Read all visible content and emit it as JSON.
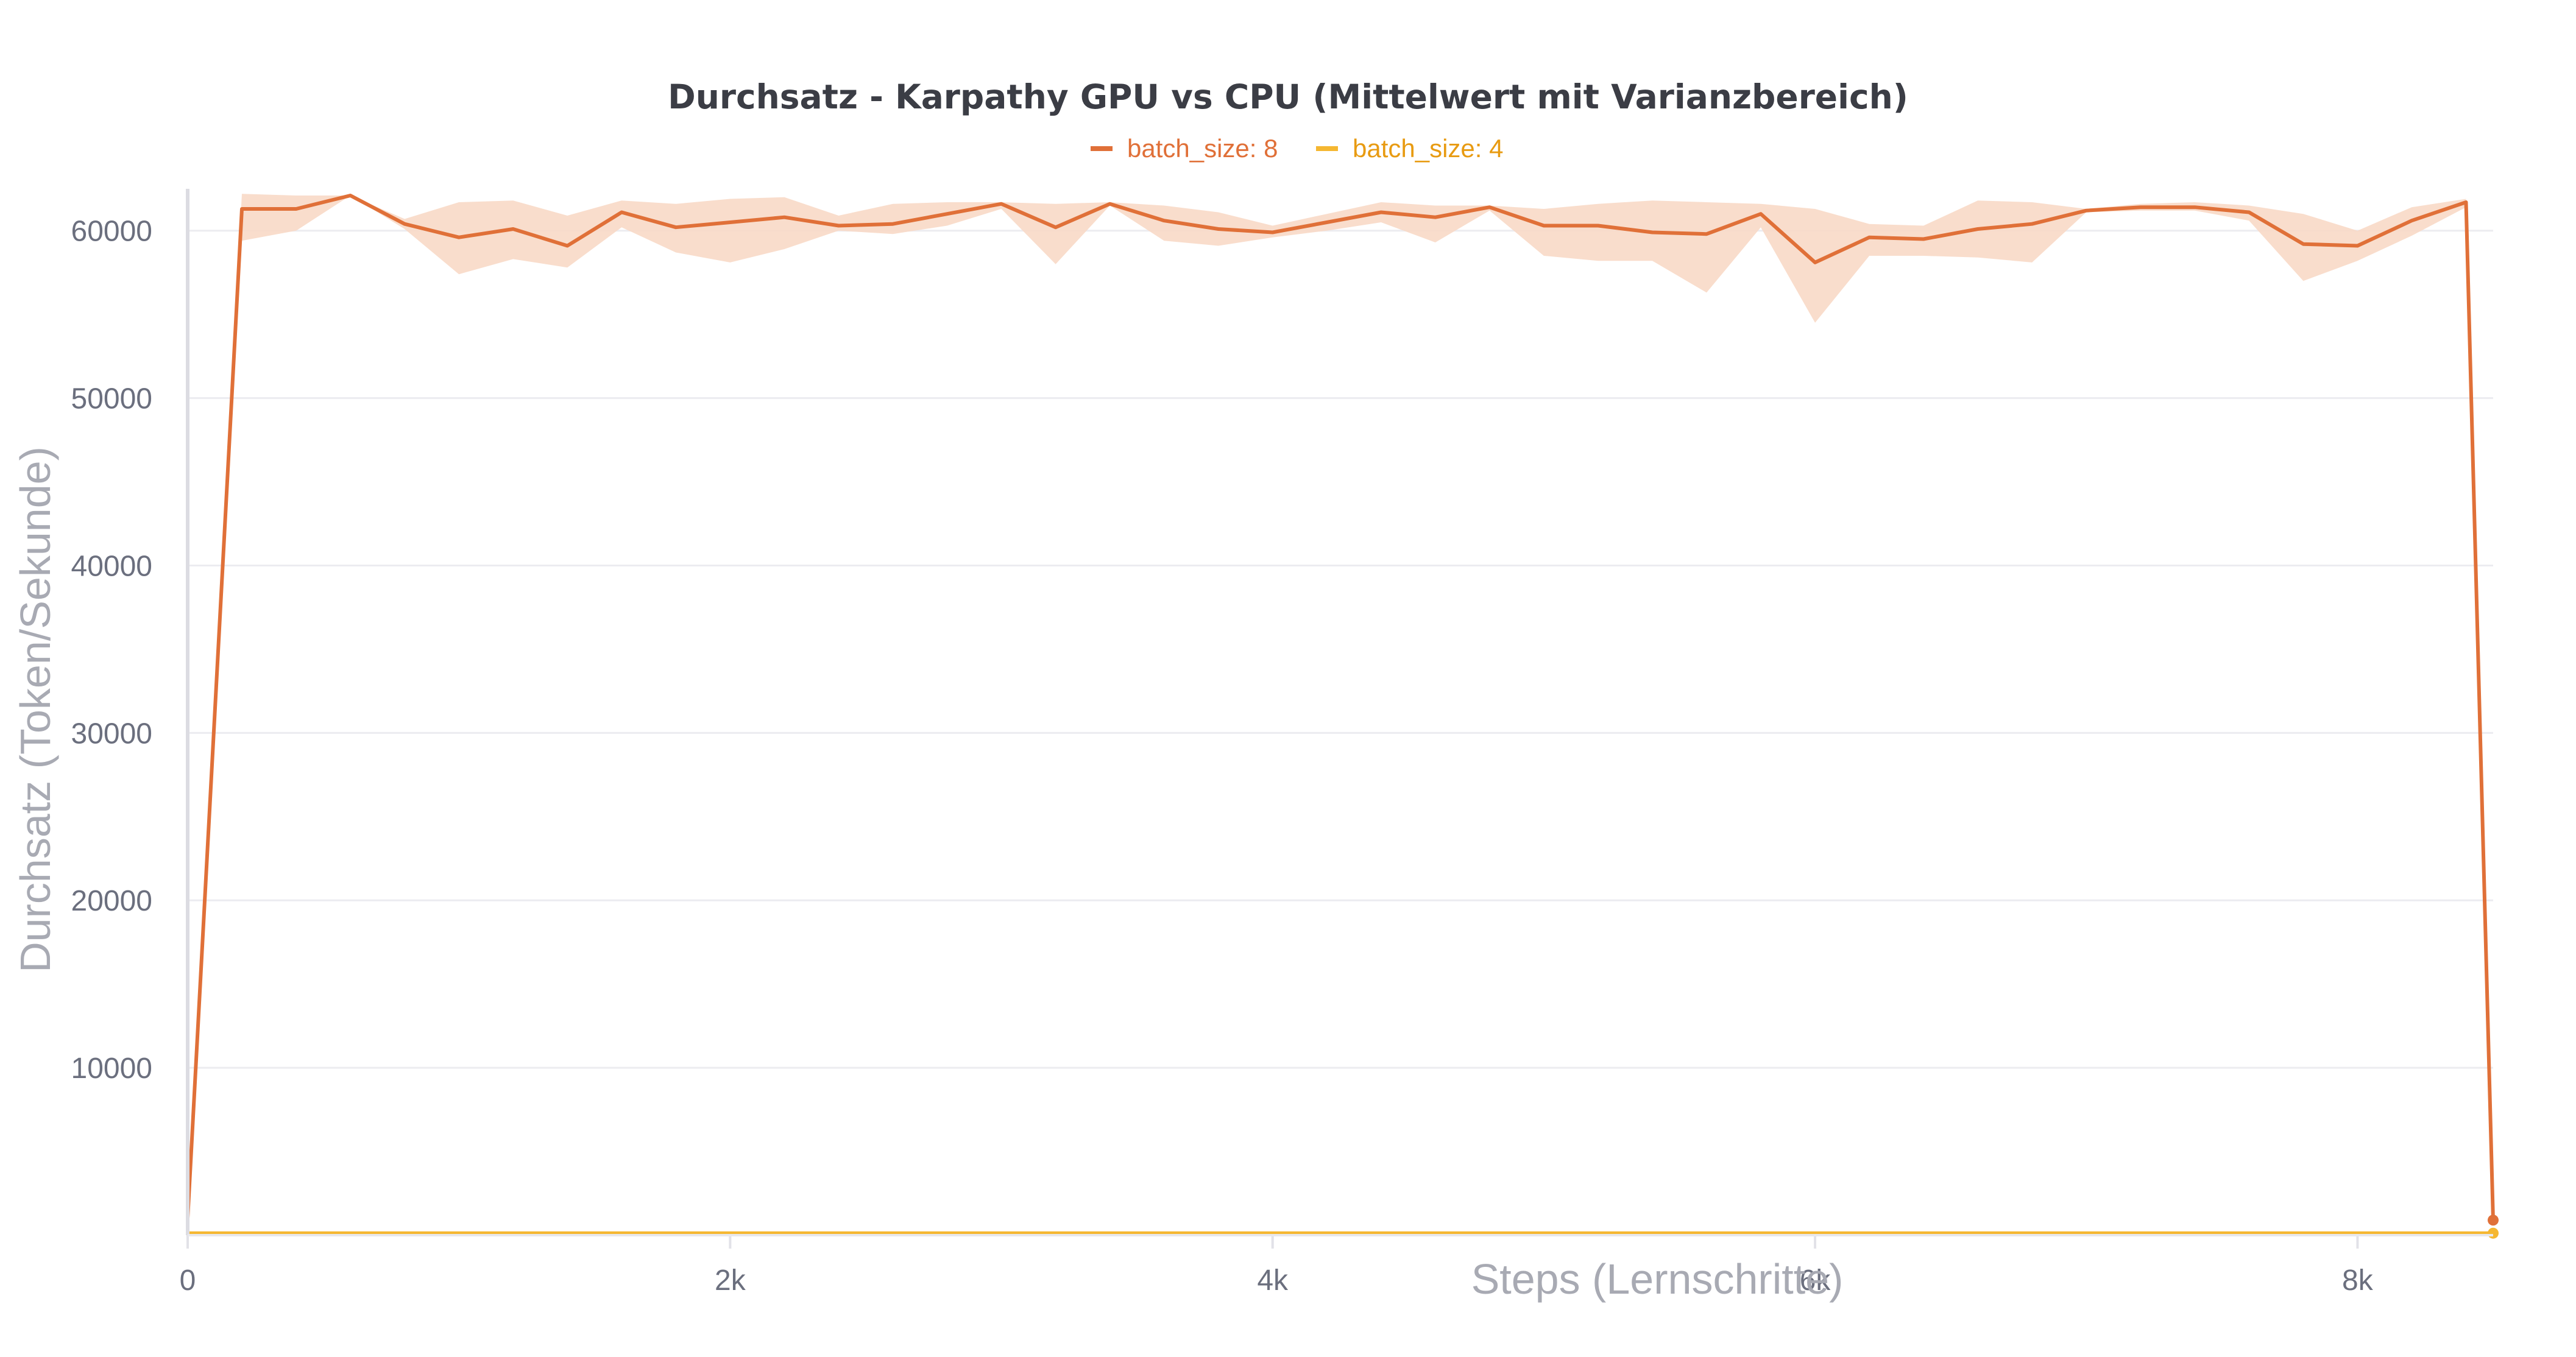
{
  "chart_data": {
    "type": "line",
    "title": "Durchsatz - Karpathy GPU vs CPU (Mittelwert mit Varianzbereich)",
    "xlabel": "Steps (Lernschritte)",
    "ylabel": "Durchsatz (Token/Sekunde)",
    "x_ticks": [
      "0",
      "2k",
      "4k",
      "6k",
      "8k"
    ],
    "x_tick_values": [
      0,
      2000,
      4000,
      6000,
      8000
    ],
    "y_ticks": [
      "10000",
      "20000",
      "30000",
      "40000",
      "50000",
      "60000"
    ],
    "y_tick_values": [
      10000,
      20000,
      30000,
      40000,
      50000,
      60000
    ],
    "xlim": [
      0,
      8500
    ],
    "ylim": [
      0,
      62500
    ],
    "grid": true,
    "legend_position": "top-center",
    "series": [
      {
        "name": "batch_size: 8",
        "color": "#e07038",
        "band_color": "#f8d9c6",
        "x": [
          0,
          200,
          400,
          600,
          800,
          1000,
          1200,
          1400,
          1600,
          1800,
          2000,
          2200,
          2400,
          2600,
          2800,
          3000,
          3200,
          3400,
          3600,
          3800,
          4000,
          4200,
          4400,
          4600,
          4800,
          5000,
          5200,
          5400,
          5600,
          5800,
          6000,
          6200,
          6400,
          6600,
          6800,
          7000,
          7200,
          7400,
          7600,
          7800,
          8000,
          8200,
          8400,
          8500
        ],
        "y": [
          1000,
          61300,
          61300,
          62100,
          60400,
          59600,
          60100,
          59100,
          61100,
          60200,
          60500,
          60800,
          60300,
          60400,
          61000,
          61600,
          60200,
          61600,
          60600,
          60100,
          59900,
          60500,
          61100,
          60800,
          61400,
          60300,
          60300,
          59900,
          59800,
          61000,
          58100,
          59600,
          59500,
          60100,
          60400,
          61200,
          61400,
          61400,
          61100,
          59200,
          59100,
          60600,
          61700,
          900
        ],
        "y_upper": [
          1000,
          62200,
          62100,
          62100,
          60700,
          61700,
          61800,
          60900,
          61800,
          61600,
          61900,
          62000,
          60900,
          61600,
          61700,
          61700,
          61600,
          61700,
          61500,
          61100,
          60300,
          61000,
          61700,
          61500,
          61500,
          61300,
          61600,
          61800,
          61700,
          61600,
          61300,
          60400,
          60300,
          61800,
          61700,
          61300,
          61600,
          61700,
          61500,
          61000,
          60000,
          61400,
          61900,
          900
        ],
        "y_lower": [
          1000,
          59400,
          60000,
          62100,
          60100,
          57400,
          58300,
          57800,
          60200,
          58700,
          58100,
          58900,
          60000,
          59800,
          60300,
          61300,
          58000,
          61500,
          59400,
          59100,
          59600,
          60000,
          60500,
          59300,
          61200,
          58500,
          58200,
          58200,
          56300,
          60200,
          54500,
          58500,
          58500,
          58400,
          58100,
          61100,
          61200,
          61200,
          60600,
          57000,
          58200,
          59700,
          61400,
          900
        ]
      },
      {
        "name": "batch_size: 4",
        "color": "#f5b731",
        "band_color": "#fbe6bd",
        "x": [
          0,
          8500
        ],
        "y": [
          120,
          120
        ],
        "y_upper": [
          200,
          200
        ],
        "y_lower": [
          60,
          60
        ]
      }
    ]
  }
}
